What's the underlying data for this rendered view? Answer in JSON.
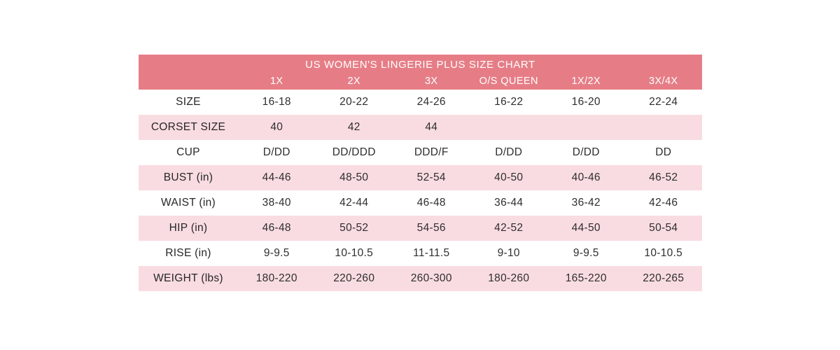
{
  "page": {
    "background": "#ffffff"
  },
  "colors": {
    "header_bg": "#e67d86",
    "header_text": "#ffffff",
    "row_alt_bg": "#f9dce1",
    "body_text": "#2e2e2e"
  },
  "chart_data": {
    "type": "table",
    "title": "US WOMEN'S LINGERIE PLUS SIZE CHART",
    "columns": [
      "",
      "1X",
      "2X",
      "3X",
      "O/S QUEEN",
      "1X/2X",
      "3X/4X"
    ],
    "rows": [
      {
        "label": "SIZE",
        "values": [
          "16-18",
          "20-22",
          "24-26",
          "16-22",
          "16-20",
          "22-24"
        ]
      },
      {
        "label": "CORSET SIZE",
        "values": [
          "40",
          "42",
          "44",
          "",
          "",
          ""
        ]
      },
      {
        "label": "CUP",
        "values": [
          "D/DD",
          "DD/DDD",
          "DDD/F",
          "D/DD",
          "D/DD",
          "DD"
        ]
      },
      {
        "label": "BUST (in)",
        "values": [
          "44-46",
          "48-50",
          "52-54",
          "40-50",
          "40-46",
          "46-52"
        ]
      },
      {
        "label": "WAIST (in)",
        "values": [
          "38-40",
          "42-44",
          "46-48",
          "36-44",
          "36-42",
          "42-46"
        ]
      },
      {
        "label": "HIP (in)",
        "values": [
          "46-48",
          "50-52",
          "54-56",
          "42-52",
          "44-50",
          "50-54"
        ]
      },
      {
        "label": "RISE (in)",
        "values": [
          "9-9.5",
          "10-10.5",
          "11-11.5",
          "9-10",
          "9-9.5",
          "10-10.5"
        ]
      },
      {
        "label": "WEIGHT (lbs)",
        "values": [
          "180-220",
          "220-260",
          "260-300",
          "180-260",
          "165-220",
          "220-265"
        ]
      }
    ],
    "layout": {
      "header_background": "#e67d86",
      "alternating_row_background": "#f9dce1",
      "row_striping": "even rows white, odd rows pink, starting after header"
    }
  }
}
